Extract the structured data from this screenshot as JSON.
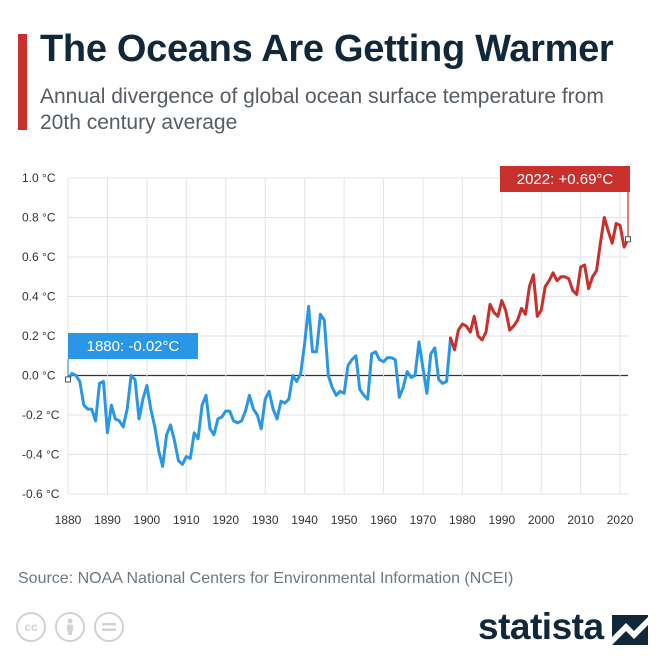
{
  "title": "The Oceans Are Getting Warmer",
  "subtitle": "Annual divergence of global ocean surface temperature from 20th century average",
  "source": "Source: NOAA National Centers for Environmental Information (NCEI)",
  "brand": "statista",
  "icons": [
    "cc-icon",
    "person-icon",
    "equals-icon",
    "statista-logo-icon"
  ],
  "colors": {
    "cool": "#2a97e6",
    "warm": "#c7302b",
    "title": "#10283a",
    "accent_bar": "#c7302b"
  },
  "chart_data": {
    "type": "line",
    "xlim": [
      1880,
      2022
    ],
    "ylim": [
      -0.6,
      1.0
    ],
    "xticks": [
      1880,
      1890,
      1900,
      1910,
      1920,
      1930,
      1940,
      1950,
      1960,
      1970,
      1980,
      1990,
      2000,
      2010,
      2020
    ],
    "yticks": [
      1.0,
      0.8,
      0.6,
      0.4,
      0.2,
      0.0,
      -0.2,
      -0.4,
      -0.6
    ],
    "ytick_labels": [
      "1.0 °C",
      "0.8 °C",
      "0.6 °C",
      "0.4 °C",
      "0.2 °C",
      "0.0 °C",
      "-0.2 °C",
      "-0.4 °C",
      "-0.6 °C"
    ],
    "grid": true,
    "color_rule": "blue below 0 °C / before 1977, red after",
    "annotations": [
      {
        "year": 1880,
        "text": "1880: -0.02°C",
        "color": "#2a97e6"
      },
      {
        "year": 2022,
        "text": "2022: +0.69°C",
        "color": "#c7302b"
      }
    ],
    "x": [
      1880,
      1881,
      1882,
      1883,
      1884,
      1885,
      1886,
      1887,
      1888,
      1889,
      1890,
      1891,
      1892,
      1893,
      1894,
      1895,
      1896,
      1897,
      1898,
      1899,
      1900,
      1901,
      1902,
      1903,
      1904,
      1905,
      1906,
      1907,
      1908,
      1909,
      1910,
      1911,
      1912,
      1913,
      1914,
      1915,
      1916,
      1917,
      1918,
      1919,
      1920,
      1921,
      1922,
      1923,
      1924,
      1925,
      1926,
      1927,
      1928,
      1929,
      1930,
      1931,
      1932,
      1933,
      1934,
      1935,
      1936,
      1937,
      1938,
      1939,
      1940,
      1941,
      1942,
      1943,
      1944,
      1945,
      1946,
      1947,
      1948,
      1949,
      1950,
      1951,
      1952,
      1953,
      1954,
      1955,
      1956,
      1957,
      1958,
      1959,
      1960,
      1961,
      1962,
      1963,
      1964,
      1965,
      1966,
      1967,
      1968,
      1969,
      1970,
      1971,
      1972,
      1973,
      1974,
      1975,
      1976,
      1977,
      1978,
      1979,
      1980,
      1981,
      1982,
      1983,
      1984,
      1985,
      1986,
      1987,
      1988,
      1989,
      1990,
      1991,
      1992,
      1993,
      1994,
      1995,
      1996,
      1997,
      1998,
      1999,
      2000,
      2001,
      2002,
      2003,
      2004,
      2005,
      2006,
      2007,
      2008,
      2009,
      2010,
      2011,
      2012,
      2013,
      2014,
      2015,
      2016,
      2017,
      2018,
      2019,
      2020,
      2021,
      2022
    ],
    "y": [
      -0.02,
      0.01,
      0.0,
      -0.03,
      -0.15,
      -0.17,
      -0.17,
      -0.23,
      -0.04,
      -0.03,
      -0.29,
      -0.15,
      -0.22,
      -0.23,
      -0.26,
      -0.17,
      0.0,
      -0.02,
      -0.22,
      -0.12,
      -0.05,
      -0.17,
      -0.26,
      -0.38,
      -0.46,
      -0.3,
      -0.25,
      -0.33,
      -0.43,
      -0.45,
      -0.41,
      -0.42,
      -0.29,
      -0.32,
      -0.15,
      -0.1,
      -0.27,
      -0.3,
      -0.22,
      -0.21,
      -0.18,
      -0.18,
      -0.23,
      -0.24,
      -0.23,
      -0.18,
      -0.1,
      -0.17,
      -0.2,
      -0.27,
      -0.12,
      -0.08,
      -0.17,
      -0.22,
      -0.13,
      -0.14,
      -0.12,
      0.0,
      -0.03,
      0.01,
      0.16,
      0.35,
      0.12,
      0.12,
      0.31,
      0.28,
      0.0,
      -0.06,
      -0.1,
      -0.08,
      -0.09,
      0.05,
      0.08,
      0.1,
      -0.07,
      -0.1,
      -0.12,
      0.11,
      0.12,
      0.08,
      0.07,
      0.09,
      0.09,
      0.08,
      -0.11,
      -0.06,
      0.02,
      -0.01,
      0.0,
      0.17,
      0.04,
      -0.09,
      0.11,
      0.14,
      -0.02,
      -0.04,
      -0.03,
      0.19,
      0.13,
      0.23,
      0.26,
      0.25,
      0.22,
      0.3,
      0.2,
      0.18,
      0.22,
      0.36,
      0.32,
      0.3,
      0.38,
      0.33,
      0.23,
      0.25,
      0.28,
      0.34,
      0.31,
      0.45,
      0.51,
      0.3,
      0.33,
      0.45,
      0.48,
      0.52,
      0.48,
      0.5,
      0.5,
      0.49,
      0.43,
      0.41,
      0.55,
      0.56,
      0.44,
      0.5,
      0.53,
      0.67,
      0.8,
      0.73,
      0.67,
      0.77,
      0.76,
      0.65,
      0.69
    ]
  }
}
